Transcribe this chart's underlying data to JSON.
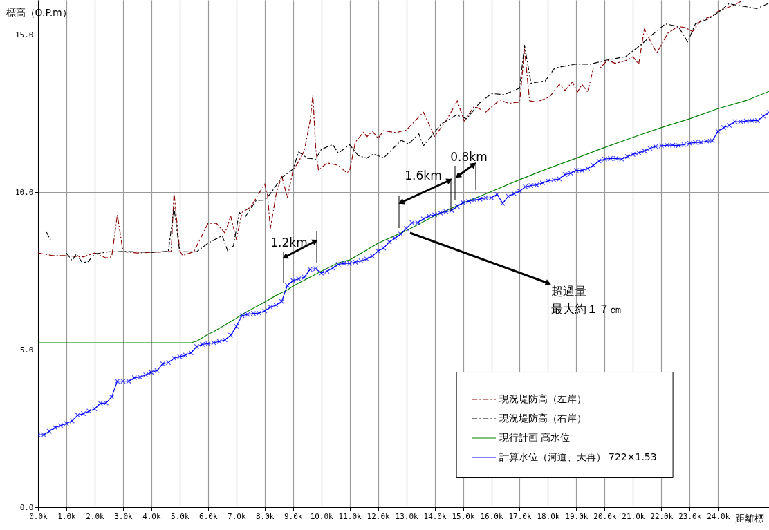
{
  "chart_data": {
    "type": "line",
    "xlabel": "距離標",
    "ylabel": "標高（O.P.m）",
    "xlim": [
      0,
      25.8
    ],
    "ylim": [
      0,
      16.1
    ],
    "xticks": [
      {
        "value": 0,
        "label": "0.0k"
      },
      {
        "value": 1,
        "label": "1.0k"
      },
      {
        "value": 2,
        "label": "2.0k"
      },
      {
        "value": 3,
        "label": "3.0k"
      },
      {
        "value": 4,
        "label": "4.0k"
      },
      {
        "value": 5,
        "label": "5.0k"
      },
      {
        "value": 6,
        "label": "6.0k"
      },
      {
        "value": 7,
        "label": "7.0k"
      },
      {
        "value": 8,
        "label": "8.0k"
      },
      {
        "value": 9,
        "label": "9.0k"
      },
      {
        "value": 10,
        "label": "10.0k"
      },
      {
        "value": 11,
        "label": "11.0k"
      },
      {
        "value": 12,
        "label": "12.0k"
      },
      {
        "value": 13,
        "label": "13.0k"
      },
      {
        "value": 14,
        "label": "14.0k"
      },
      {
        "value": 15,
        "label": "15.0k"
      },
      {
        "value": 16,
        "label": "16.0k"
      },
      {
        "value": 17,
        "label": "17.0k"
      },
      {
        "value": 18,
        "label": "18.0k"
      },
      {
        "value": 19,
        "label": "19.0k"
      },
      {
        "value": 20,
        "label": "20.0k"
      },
      {
        "value": 21,
        "label": "21.0k"
      },
      {
        "value": 22,
        "label": "22.0k"
      },
      {
        "value": 23,
        "label": "23.0k"
      },
      {
        "value": 24,
        "label": "24.0k"
      }
    ],
    "yticks": [
      {
        "value": 0,
        "label": "0.0"
      },
      {
        "value": 5,
        "label": "5.0"
      },
      {
        "value": 10,
        "label": "10.0"
      },
      {
        "value": 15,
        "label": "15.0"
      }
    ],
    "grid": true,
    "legend": "bottom right",
    "series": [
      {
        "name": "現況堤防高（左岸）",
        "color": "#8b0000",
        "line_style": "dashed",
        "marker": "none",
        "x": [
          0,
          0.5,
          1.0,
          1.4,
          1.6,
          2.0,
          2.4,
          2.6,
          2.8,
          3.0,
          3.5,
          4.0,
          4.5,
          4.7,
          4.8,
          5.0,
          5.1,
          5.5,
          6.0,
          6.3,
          6.6,
          6.8,
          7.0,
          7.2,
          7.5,
          8.0,
          8.1,
          8.2,
          8.4,
          8.6,
          8.8,
          9.0,
          9.2,
          9.4,
          9.6,
          9.7,
          9.8,
          9.9,
          10.2,
          10.6,
          10.9,
          11.0,
          11.2,
          11.5,
          11.6,
          11.8,
          12.0,
          12.2,
          12.64,
          13.0,
          13.6,
          14.0,
          14.42,
          14.8,
          15.04,
          15.4,
          15.8,
          16.3,
          16.6,
          17.0,
          17.17,
          17.35,
          17.6,
          18.05,
          18.4,
          18.6,
          18.86,
          19.04,
          19.2,
          19.4,
          19.6,
          19.84,
          20.1,
          20.37,
          20.73,
          21.0,
          21.2,
          21.4,
          21.6,
          21.84,
          22.24,
          22.6,
          22.86,
          23.1,
          23.4,
          23.75,
          24.0,
          24.56,
          24.8
        ],
        "values": [
          8.07,
          7.99,
          7.99,
          7.95,
          7.95,
          8.07,
          7.91,
          7.95,
          9.28,
          8.11,
          8.07,
          8.09,
          8.11,
          8.12,
          9.99,
          8.15,
          7.99,
          8.11,
          9.01,
          9.01,
          8.7,
          9.24,
          8.5,
          9.36,
          9.52,
          10.26,
          9.91,
          8.85,
          9.91,
          10.52,
          9.83,
          10.69,
          10.97,
          11.32,
          12.26,
          13.08,
          11.4,
          10.69,
          10.93,
          10.85,
          10.61,
          10.69,
          11.59,
          11.91,
          11.75,
          11.94,
          11.71,
          11.95,
          11.89,
          11.97,
          12.54,
          11.77,
          12.29,
          12.9,
          12.26,
          12.73,
          12.54,
          12.93,
          12.82,
          12.86,
          14.54,
          12.9,
          12.86,
          13.02,
          13.42,
          13.23,
          13.5,
          13.18,
          13.42,
          13.18,
          13.94,
          13.94,
          14.19,
          14.09,
          14.17,
          14.3,
          14.06,
          15.18,
          14.82,
          14.42,
          15.06,
          15.26,
          15.22,
          15.1,
          15.46,
          15.58,
          15.74,
          15.94,
          16.05
        ]
      },
      {
        "name": "現況堤防高（右岸）",
        "color": "#000000",
        "line_style": "dashed",
        "marker": "none",
        "x": [
          0.3,
          0.45,
          0.7,
          1.0,
          1.2,
          1.35,
          1.55,
          1.75,
          2.0,
          2.5,
          2.8,
          3.0,
          4.0,
          4.6,
          4.8,
          5.0,
          5.5,
          5.6,
          6.0,
          6.5,
          6.7,
          6.9,
          7.1,
          7.3,
          7.7,
          8.0,
          8.2,
          8.6,
          9.0,
          9.2,
          9.5,
          9.8,
          10.0,
          10.4,
          10.6,
          11.0,
          11.3,
          11.6,
          11.84,
          12.2,
          12.82,
          13.08,
          13.44,
          13.6,
          14.24,
          14.77,
          15.13,
          15.57,
          16.0,
          16.46,
          17.0,
          17.17,
          17.4,
          17.9,
          18.24,
          18.95,
          19.5,
          20.0,
          20.73,
          21.26,
          21.6,
          22.14,
          22.6,
          22.93,
          23.2,
          23.66,
          24.06,
          24.38,
          25.37,
          25.8
        ],
        "values": [
          8.73,
          8.46,
          null,
          8.07,
          7.83,
          8.04,
          7.78,
          7.78,
          8.04,
          8.11,
          8.11,
          8.12,
          8.09,
          8.12,
          9.52,
          8.11,
          8.11,
          8.11,
          8.38,
          8.62,
          8.12,
          8.3,
          9.36,
          9.2,
          9.74,
          9.75,
          9.95,
          10.46,
          10.73,
          11.28,
          11.08,
          11.05,
          11.36,
          11.51,
          11.24,
          11.51,
          11.16,
          11.08,
          11.21,
          11.09,
          11.65,
          11.53,
          11.85,
          11.47,
          12.17,
          12.45,
          12.33,
          12.82,
          13.13,
          13.1,
          13.3,
          14.66,
          13.46,
          13.53,
          13.94,
          14.06,
          14.06,
          14.18,
          14.3,
          14.66,
          14.94,
          15.34,
          15.26,
          14.77,
          15.34,
          15.5,
          15.74,
          15.98,
          15.83,
          16.0
        ]
      },
      {
        "name": "現行計画 高水位",
        "color": "#008000",
        "line_style": "solid",
        "marker": "none",
        "x": [
          0,
          5.4,
          5.6,
          6.0,
          6.2,
          7.0,
          7.2,
          8.0,
          8.4,
          8.8,
          9.0,
          10.0,
          10.6,
          11.0,
          12.0,
          12.8,
          13.0,
          14.0,
          15.0,
          16.0,
          17.0,
          18.0,
          19.0,
          20.0,
          21.0,
          22.0,
          23.0,
          24.0,
          25.0,
          25.8
        ],
        "values": [
          5.22,
          5.22,
          5.27,
          5.49,
          5.57,
          6.0,
          6.12,
          6.51,
          6.72,
          6.9,
          7.02,
          7.49,
          7.76,
          7.85,
          8.38,
          8.7,
          8.78,
          9.25,
          9.65,
          10.02,
          10.4,
          10.75,
          11.08,
          11.42,
          11.74,
          12.05,
          12.33,
          12.65,
          12.91,
          13.2
        ]
      },
      {
        "name": "計算水位（河道、天再） 722×1.53",
        "color": "#0000ff",
        "line_style": "solid",
        "marker": "cross",
        "x": [
          0,
          0.2,
          0.4,
          0.6,
          0.8,
          1.0,
          1.2,
          1.4,
          1.6,
          1.8,
          2.0,
          2.2,
          2.4,
          2.6,
          2.8,
          3.0,
          3.2,
          3.4,
          3.6,
          3.8,
          4.0,
          4.2,
          4.4,
          4.6,
          4.8,
          5.0,
          5.2,
          5.4,
          5.6,
          5.8,
          6.0,
          6.2,
          6.4,
          6.6,
          6.8,
          7.0,
          7.2,
          7.4,
          7.6,
          7.8,
          8.0,
          8.2,
          8.4,
          8.6,
          8.8,
          9.0,
          9.2,
          9.4,
          9.6,
          9.8,
          10.0,
          10.2,
          10.4,
          10.6,
          10.8,
          11.0,
          11.2,
          11.4,
          11.6,
          11.8,
          12.0,
          12.2,
          12.4,
          12.6,
          12.8,
          13.0,
          13.2,
          13.4,
          13.6,
          13.8,
          14.0,
          14.2,
          14.4,
          14.6,
          14.8,
          15.0,
          15.2,
          15.4,
          15.6,
          15.8,
          16.0,
          16.2,
          16.4,
          16.6,
          16.8,
          17.0,
          17.2,
          17.4,
          17.6,
          17.8,
          18.0,
          18.2,
          18.4,
          18.6,
          18.8,
          19.0,
          19.2,
          19.4,
          19.6,
          19.8,
          20.0,
          20.2,
          20.4,
          20.6,
          20.8,
          21.0,
          21.2,
          21.4,
          21.6,
          21.8,
          22.0,
          22.2,
          22.4,
          22.6,
          22.8,
          23.0,
          23.2,
          23.4,
          23.6,
          23.8,
          24.0,
          24.2,
          24.4,
          24.6,
          24.8,
          25.0,
          25.2,
          25.4,
          25.6,
          25.8
        ],
        "values": [
          2.3,
          2.3,
          2.41,
          2.53,
          2.59,
          2.66,
          2.74,
          2.92,
          2.97,
          3.05,
          3.12,
          3.3,
          3.31,
          3.5,
          4.0,
          4.0,
          4.0,
          4.11,
          4.13,
          4.2,
          4.28,
          4.34,
          4.55,
          4.59,
          4.73,
          4.78,
          4.83,
          4.9,
          5.1,
          5.17,
          5.19,
          5.22,
          5.26,
          5.31,
          5.46,
          5.74,
          6.08,
          6.12,
          6.15,
          6.16,
          6.23,
          6.35,
          6.41,
          6.53,
          7.04,
          7.19,
          7.25,
          7.3,
          7.55,
          7.57,
          7.43,
          7.49,
          7.59,
          7.71,
          7.74,
          7.74,
          7.78,
          7.82,
          7.88,
          7.97,
          8.13,
          8.23,
          8.42,
          8.54,
          8.67,
          8.85,
          9.03,
          9.03,
          9.15,
          9.24,
          9.28,
          9.34,
          9.38,
          9.42,
          9.55,
          9.67,
          9.71,
          9.75,
          9.78,
          9.82,
          9.82,
          9.93,
          9.65,
          9.87,
          9.95,
          10.03,
          10.17,
          10.21,
          10.23,
          10.29,
          10.36,
          10.39,
          10.42,
          10.56,
          10.6,
          10.69,
          10.69,
          10.75,
          10.85,
          10.99,
          11.05,
          11.07,
          11.07,
          11.05,
          11.13,
          11.2,
          11.25,
          11.31,
          11.39,
          11.45,
          11.47,
          11.49,
          11.49,
          11.48,
          11.51,
          11.55,
          11.58,
          11.58,
          11.62,
          11.63,
          11.93,
          12.05,
          12.12,
          12.24,
          12.24,
          12.26,
          12.27,
          12.27,
          12.41,
          12.53
        ]
      }
    ],
    "annotations": [
      "1.2km",
      "1.6km",
      "0.8km",
      "超過量",
      "最大約１７㎝"
    ]
  }
}
